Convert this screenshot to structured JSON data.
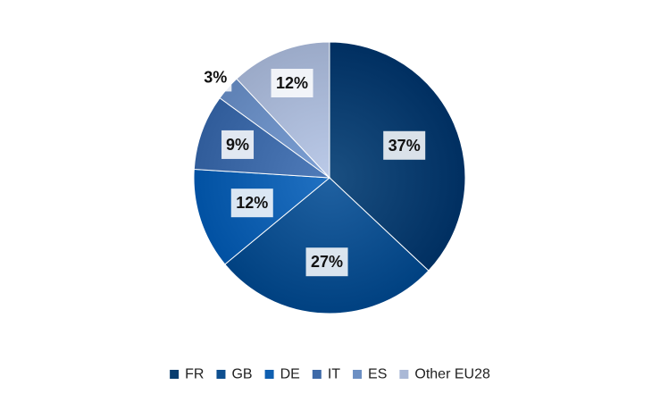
{
  "chart_data": {
    "type": "pie",
    "title": "",
    "start_angle_deg": 0,
    "direction": "clockwise",
    "legend_position": "bottom",
    "slices": [
      {
        "label": "FR",
        "value": 37,
        "display": "37%",
        "color": "#083d6f"
      },
      {
        "label": "GB",
        "value": 27,
        "display": "27%",
        "color": "#0e4f8f"
      },
      {
        "label": "DE",
        "value": 12,
        "display": "12%",
        "color": "#0f5fb0"
      },
      {
        "label": "IT",
        "value": 9,
        "display": "9%",
        "color": "#3e6aa8"
      },
      {
        "label": "ES",
        "value": 3,
        "display": "3%",
        "color": "#6c8fc3"
      },
      {
        "label": "Other EU28",
        "value": 12,
        "display": "12%",
        "color": "#a9b8d6"
      }
    ]
  }
}
